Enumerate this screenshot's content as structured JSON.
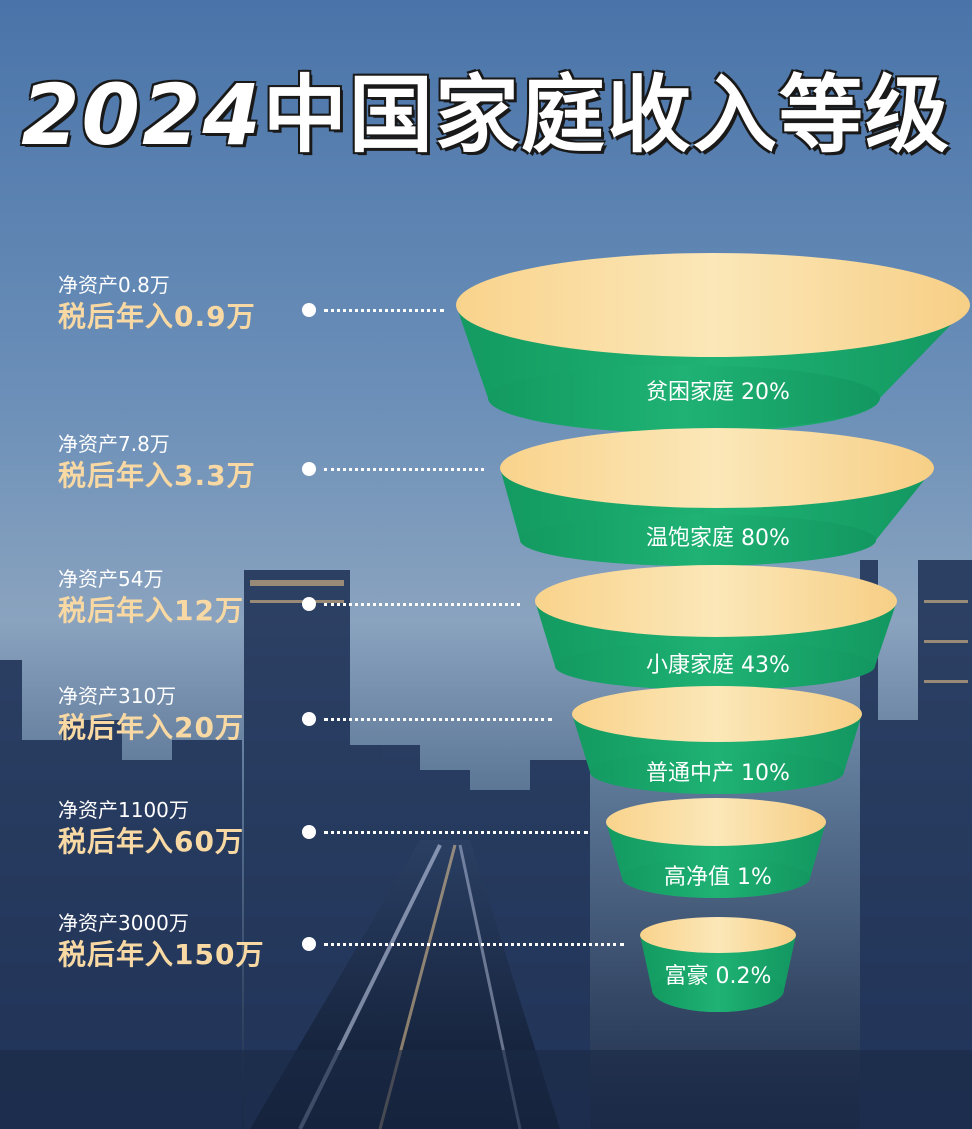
{
  "title_year": "2024",
  "title_rest": "中国家庭收入等级",
  "tiers": [
    {
      "asset": "净资产0.8万",
      "income": "税后年入0.9万",
      "name": "贫困家庭 20%"
    },
    {
      "asset": "净资产7.8万",
      "income": "税后年入3.3万",
      "name": "温饱家庭 80%"
    },
    {
      "asset": "净资产54万",
      "income": "税后年入12万",
      "name": "小康家庭 43%"
    },
    {
      "asset": "净资产310万",
      "income": "税后年入20万",
      "name": "普通中产 10%"
    },
    {
      "asset": "净资产1100万",
      "income": "税后年入60万",
      "name": "高净值 1%"
    },
    {
      "asset": "净资产3000万",
      "income": "税后年入150万",
      "name": "富豪 0.2%"
    }
  ],
  "colors": {
    "band": "#1aa36b",
    "top": "#f7d99e",
    "income_text": "#f9d9a3"
  }
}
